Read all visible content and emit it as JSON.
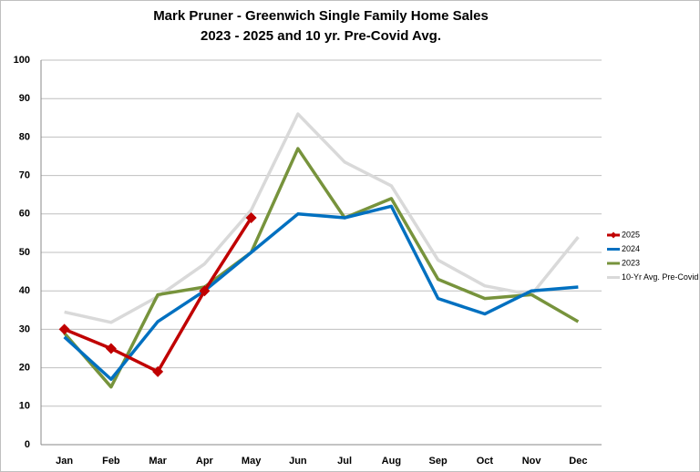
{
  "chart_data": {
    "type": "line",
    "title": "Mark Pruner - Greenwich Single Family Home Sales",
    "subtitle": "2023 - 2025 and 10 yr. Pre-Covid Avg.",
    "categories": [
      "Jan",
      "Feb",
      "Mar",
      "Apr",
      "May",
      "Jun",
      "Jul",
      "Aug",
      "Sep",
      "Oct",
      "Nov",
      "Dec"
    ],
    "series": [
      {
        "name": "2025",
        "color": "#c00000",
        "marker": "diamond",
        "values": [
          30,
          25,
          19,
          40,
          59,
          null,
          null,
          null,
          null,
          null,
          null,
          null
        ]
      },
      {
        "name": "2024",
        "color": "#0070c0",
        "values": [
          28,
          17,
          32,
          40,
          50,
          60,
          59,
          62,
          38,
          34,
          40,
          41
        ]
      },
      {
        "name": "2023",
        "color": "#77933c",
        "values": [
          29,
          15,
          39,
          41,
          50,
          77,
          59,
          64,
          43,
          38,
          39,
          32
        ]
      },
      {
        "name": "10-Yr Avg. Pre-Covid",
        "color": "#d9d9d9",
        "values": [
          34.5,
          31.8,
          38.5,
          47,
          61,
          86,
          73.5,
          67.3,
          48,
          41.3,
          39,
          54
        ]
      }
    ],
    "ylim": [
      0,
      100
    ],
    "yticks": [
      0,
      10,
      20,
      30,
      40,
      50,
      60,
      70,
      80,
      90,
      100
    ],
    "grid": true,
    "legend": "right"
  }
}
